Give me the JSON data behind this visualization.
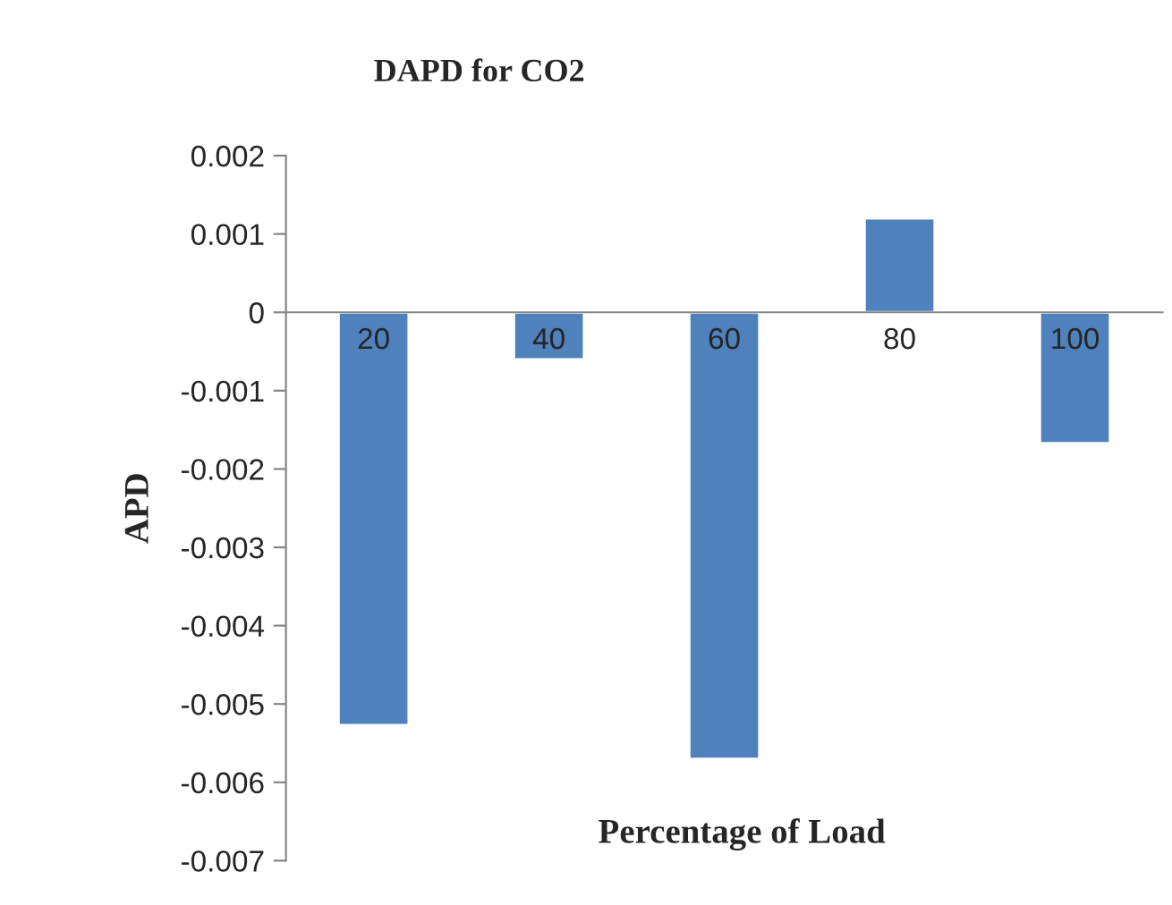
{
  "chart_data": {
    "type": "bar",
    "title": "DAPD for CO2",
    "xlabel": "Percentage of Load",
    "ylabel": "APD",
    "categories": [
      "20",
      "40",
      "60",
      "80",
      "100"
    ],
    "series": [
      {
        "color": "#4f81bd",
        "values": [
          -0.00527,
          -0.0006,
          -0.0057,
          0.0012,
          -0.00167
        ]
      }
    ],
    "ylim": [
      -0.007,
      0.002
    ],
    "yticks": [
      {
        "value": 0.002,
        "label": "0.002"
      },
      {
        "value": 0.001,
        "label": "0.001"
      },
      {
        "value": 0,
        "label": "0"
      },
      {
        "value": -0.001,
        "label": "-0.001"
      },
      {
        "value": -0.002,
        "label": "-0.002"
      },
      {
        "value": -0.003,
        "label": "-0.003"
      },
      {
        "value": -0.004,
        "label": "-0.004"
      },
      {
        "value": -0.005,
        "label": "-0.005"
      },
      {
        "value": -0.006,
        "label": "-0.006"
      },
      {
        "value": -0.007,
        "label": "-0.007"
      }
    ],
    "grid": false,
    "legend": false
  }
}
